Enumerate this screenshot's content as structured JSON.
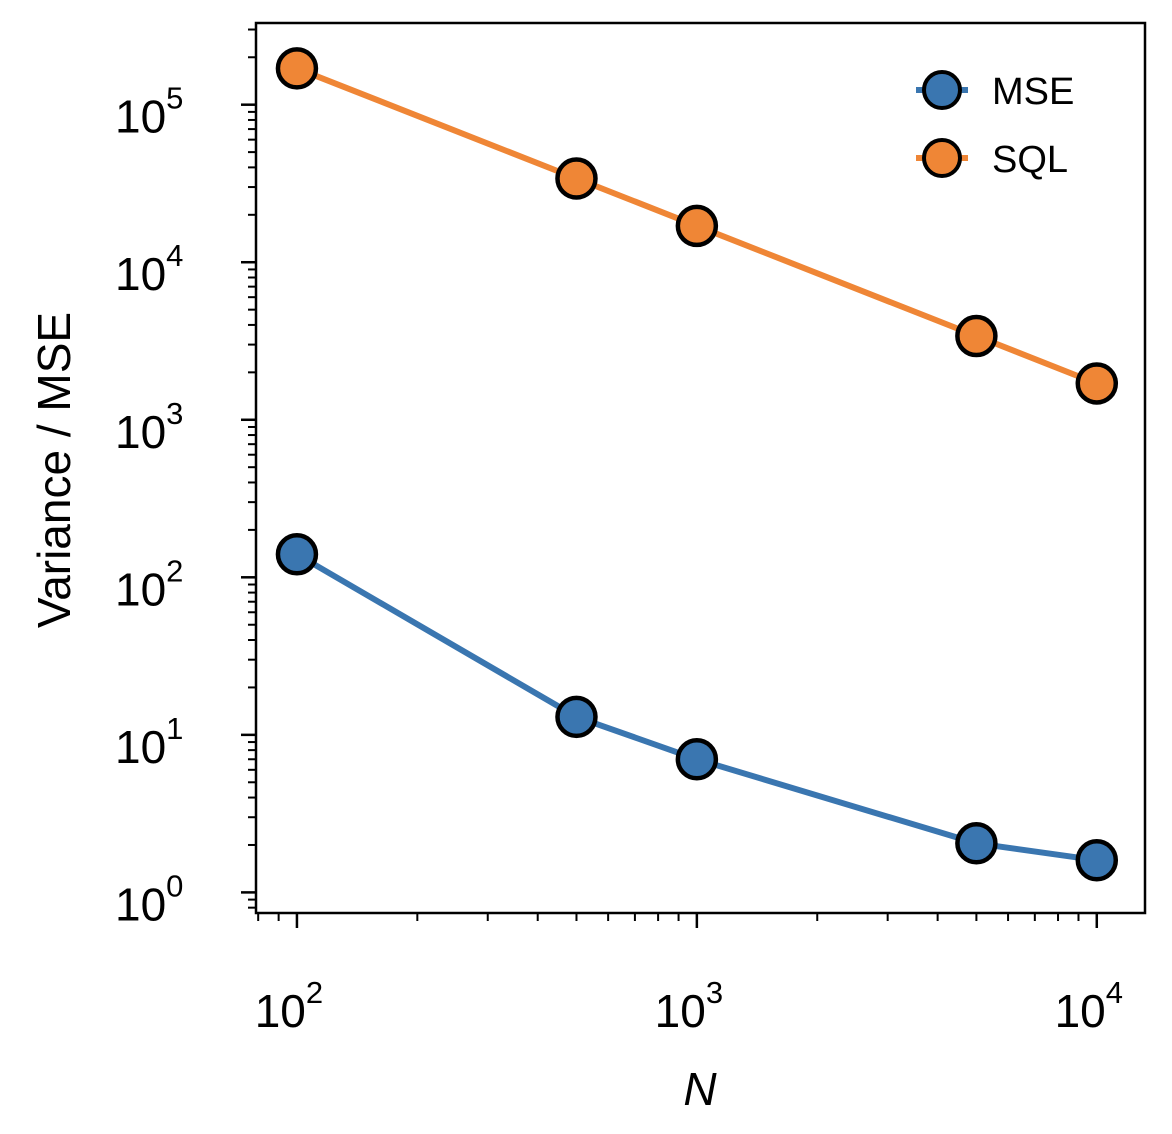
{
  "chart_data": {
    "type": "line",
    "title": "",
    "xlabel": "N",
    "ylabel": "Variance / MSE",
    "xscale": "log",
    "yscale": "log",
    "xlim": [
      79,
      13200
    ],
    "ylim": [
      0.74,
      330000
    ],
    "x": [
      100,
      500,
      1000,
      5000,
      10000
    ],
    "series": [
      {
        "name": "MSE",
        "color": "#3a76b0",
        "values": [
          140,
          13,
          7,
          2.05,
          1.6
        ]
      },
      {
        "name": "SQL",
        "color": "#ef8636",
        "values": [
          170000,
          34000,
          17000,
          3400,
          1700
        ]
      }
    ],
    "xticks": [
      {
        "value": 100,
        "base": "10",
        "exp": "2"
      },
      {
        "value": 1000,
        "base": "10",
        "exp": "3"
      },
      {
        "value": 10000,
        "base": "10",
        "exp": "4"
      }
    ],
    "yticks": [
      {
        "value": 1,
        "base": "10",
        "exp": "0"
      },
      {
        "value": 10,
        "base": "10",
        "exp": "1"
      },
      {
        "value": 100,
        "base": "10",
        "exp": "2"
      },
      {
        "value": 1000,
        "base": "10",
        "exp": "3"
      },
      {
        "value": 10000,
        "base": "10",
        "exp": "4"
      },
      {
        "value": 100000,
        "base": "10",
        "exp": "5"
      }
    ],
    "grid": false,
    "legend_position": "top-right",
    "marker_edge_color": "#000000"
  }
}
